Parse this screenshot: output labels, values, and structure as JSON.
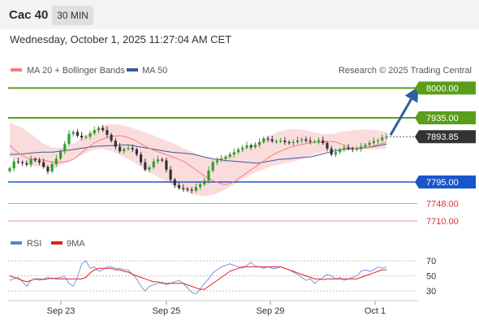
{
  "header": {
    "instrument": "Cac 40",
    "timeframe": "30 MIN",
    "datetime": "Wednesday, October 1, 2025 11:27:04 AM CET"
  },
  "legend": {
    "ma20_label": "MA 20 + Bollinger Bands",
    "ma50_label": "MA 50",
    "copyright": "Research © 2025 Trading Central",
    "colors": {
      "ma20": "#f08080",
      "bollinger": "#f9c9c9",
      "ma50": "#3a5aa0"
    }
  },
  "rsi_legend": {
    "rsi_label": "RSI",
    "ma_label": "9MA",
    "colors": {
      "rsi": "#5b7fd6",
      "ma": "#e02020"
    }
  },
  "chart_data": [
    {
      "type": "line",
      "title": "",
      "xlabel": "",
      "ylabel": "",
      "x_ticks": [
        "Sep 23",
        "Sep 25",
        "Sep 29",
        "Oct 1"
      ],
      "ylim": [
        7700,
        8010
      ],
      "price_scale": "linear",
      "current_price": 7893.85,
      "target": {
        "label": "8000.00",
        "value": 8000.0,
        "color": "#5a9e1a",
        "direction": "up"
      },
      "levels": [
        {
          "label": "7935.00",
          "value": 7935.0,
          "kind": "resistance",
          "color": "#5a9e1a"
        },
        {
          "label": "7893.85",
          "value": 7893.85,
          "kind": "current",
          "color": "#333333"
        },
        {
          "label": "7795.00",
          "value": 7795.0,
          "kind": "pivot",
          "color": "#1a56c8"
        },
        {
          "label": "7748.00",
          "value": 7748.0,
          "kind": "support",
          "color": "#e03030"
        },
        {
          "label": "7710.00",
          "value": 7710.0,
          "kind": "support",
          "color": "#e03030"
        }
      ],
      "candles_close": [
        7825,
        7840,
        7838,
        7836,
        7833,
        7845,
        7842,
        7838,
        7828,
        7818,
        7834,
        7846,
        7862,
        7878,
        7900,
        7904,
        7896,
        7892,
        7894,
        7901,
        7908,
        7913,
        7908,
        7898,
        7885,
        7872,
        7862,
        7867,
        7869,
        7866,
        7855,
        7838,
        7822,
        7827,
        7840,
        7844,
        7842,
        7822,
        7800,
        7788,
        7782,
        7780,
        7778,
        7776,
        7784,
        7790,
        7798,
        7820,
        7838,
        7842,
        7846,
        7850,
        7855,
        7860,
        7866,
        7870,
        7875,
        7871,
        7876,
        7882,
        7890,
        7888,
        7884,
        7884,
        7885,
        7882,
        7880,
        7882,
        7886,
        7888,
        7885,
        7883,
        7883,
        7886,
        7880,
        7868,
        7855,
        7860,
        7866,
        7870,
        7868,
        7866,
        7867,
        7872,
        7876,
        7880,
        7884,
        7886,
        7892,
        7893.85
      ],
      "ma20": [
        7875,
        7862,
        7852,
        7846,
        7845,
        7843,
        7840,
        7838,
        7838,
        7840,
        7846,
        7858,
        7870,
        7880,
        7887,
        7892,
        7895,
        7896,
        7893,
        7888,
        7880,
        7872,
        7865,
        7860,
        7855,
        7850,
        7845,
        7838,
        7828,
        7818,
        7808,
        7800,
        7794,
        7789,
        7792,
        7800,
        7810,
        7820,
        7830,
        7840,
        7850,
        7858,
        7864,
        7870,
        7874,
        7877,
        7880,
        7882,
        7882,
        7883,
        7883,
        7878,
        7872,
        7868,
        7868,
        7870,
        7874,
        7878,
        7882
      ],
      "bollinger_upper": [
        7925,
        7915,
        7900,
        7880,
        7870,
        7870,
        7880,
        7895,
        7910,
        7921,
        7921,
        7916,
        7908,
        7900,
        7890,
        7882,
        7870,
        7860,
        7850,
        7845,
        7850,
        7860,
        7870,
        7880,
        7893,
        7905,
        7910,
        7910,
        7905,
        7900,
        7900,
        7905,
        7908,
        7910,
        7908,
        7905
      ],
      "bollinger_lower": [
        7850,
        7840,
        7830,
        7826,
        7826,
        7838,
        7850,
        7862,
        7868,
        7862,
        7850,
        7836,
        7820,
        7806,
        7792,
        7778,
        7768,
        7764,
        7768,
        7780,
        7795,
        7810,
        7820,
        7830,
        7835,
        7840,
        7850,
        7858,
        7863,
        7865,
        7866,
        7866,
        7866,
        7868
      ],
      "ma50": [
        7855,
        7856,
        7858,
        7860,
        7860,
        7863,
        7866,
        7870,
        7873,
        7874,
        7875,
        7876,
        7872,
        7868,
        7864,
        7860,
        7858,
        7856,
        7850,
        7845,
        7842,
        7840,
        7838,
        7836,
        7840,
        7844,
        7846,
        7848,
        7850,
        7856,
        7862,
        7866,
        7868,
        7870,
        7873,
        7878
      ],
      "series": [
        {
          "name": "MA 20 + Bollinger Bands"
        },
        {
          "name": "MA 50"
        }
      ]
    },
    {
      "type": "line",
      "title": "",
      "yticks": [
        30,
        50,
        70
      ],
      "ylim": [
        20,
        80
      ],
      "series": [
        {
          "name": "RSI",
          "values": [
            44,
            46,
            48,
            42,
            36,
            44,
            46,
            44,
            46,
            48,
            46,
            47,
            48,
            49,
            40,
            36,
            48,
            66,
            70,
            60,
            62,
            56,
            58,
            62,
            62,
            60,
            60,
            58,
            58,
            52,
            46,
            36,
            30,
            36,
            38,
            40,
            42,
            38,
            40,
            42,
            44,
            40,
            34,
            28,
            26,
            32,
            40,
            46,
            54,
            58,
            62,
            64,
            66,
            64,
            62,
            60,
            64,
            68,
            63,
            62,
            60,
            62,
            60,
            60,
            62,
            60,
            58,
            55,
            52,
            48,
            44,
            46,
            40,
            44,
            48,
            52,
            50,
            46,
            48,
            44,
            46,
            48,
            50,
            56,
            58,
            56,
            58,
            62,
            60,
            62
          ]
        },
        {
          "name": "9MA",
          "values": [
            50,
            48,
            46,
            44,
            42,
            44,
            46,
            46,
            45,
            46,
            47,
            46,
            46,
            46,
            46,
            46,
            46,
            46,
            48,
            54,
            58,
            60,
            60,
            60,
            60,
            58,
            58,
            56,
            55,
            52,
            50,
            48,
            46,
            44,
            42,
            42,
            40,
            40,
            40,
            40,
            40,
            40,
            38,
            36,
            34,
            32,
            32,
            36,
            40,
            44,
            48,
            52,
            56,
            58,
            60,
            62,
            62,
            62,
            62,
            62,
            62,
            62,
            62,
            62,
            62,
            60,
            58,
            56,
            54,
            52,
            50,
            48,
            46,
            46,
            45,
            46,
            46,
            46,
            46,
            46,
            46,
            46,
            46,
            48,
            50,
            52,
            54,
            56,
            58,
            58
          ]
        }
      ]
    }
  ]
}
